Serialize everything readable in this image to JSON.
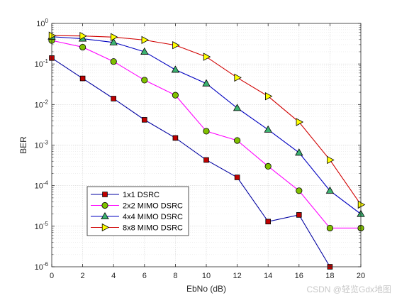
{
  "chart_data": {
    "type": "line",
    "title": "",
    "xlabel": "EbNo (dB)",
    "ylabel": "BER",
    "xlim": [
      0,
      20
    ],
    "ylim": [
      1e-06,
      1
    ],
    "yscale": "log",
    "grid": true,
    "minor_grid": true,
    "legend_placement": "lower-left",
    "x": [
      0,
      2,
      4,
      6,
      8,
      10,
      12,
      14,
      16,
      18,
      20
    ],
    "x_ticks": [
      "0",
      "2",
      "4",
      "6",
      "8",
      "10",
      "12",
      "14",
      "16",
      "18",
      "20"
    ],
    "y_ticks": [
      {
        "exp": -6,
        "base": "10",
        "power": "-6"
      },
      {
        "exp": -5,
        "base": "10",
        "power": "-5"
      },
      {
        "exp": -4,
        "base": "10",
        "power": "-4"
      },
      {
        "exp": -3,
        "base": "10",
        "power": "-3"
      },
      {
        "exp": -2,
        "base": "10",
        "power": "-2"
      },
      {
        "exp": -1,
        "base": "10",
        "power": "-1"
      },
      {
        "exp": 0,
        "base": "10",
        "power": "0"
      }
    ],
    "series": [
      {
        "name": "1x1 DSRC",
        "color": "#0000a0",
        "marker": "square",
        "marker_color": "#c00000",
        "values": [
          0.14,
          0.044,
          0.014,
          0.0042,
          0.0015,
          0.00043,
          0.00016,
          1.3e-05,
          1.9e-05,
          1e-06,
          null
        ]
      },
      {
        "name": "2x2 MIMO DSRC",
        "color": "#ff00ff",
        "marker": "circle",
        "marker_color": "#80c000",
        "values": [
          0.38,
          0.26,
          0.115,
          0.04,
          0.017,
          0.0022,
          0.0013,
          0.0003,
          7.5e-05,
          9e-06,
          9e-06
        ]
      },
      {
        "name": "4x4 MIMO DSRC",
        "color": "#0000c0",
        "marker": "triangle",
        "marker_color": "#3cb371",
        "values": [
          0.47,
          0.42,
          0.34,
          0.2,
          0.072,
          0.033,
          0.0082,
          0.0024,
          0.00065,
          7.5e-05,
          2e-05
        ]
      },
      {
        "name": "8x8 MIMO DSRC",
        "color": "#d00000",
        "marker": "triangle-right",
        "marker_color": "#ffff00",
        "values": [
          0.5,
          0.49,
          0.46,
          0.39,
          0.29,
          0.15,
          0.046,
          0.016,
          0.0037,
          0.00043,
          3.4e-05
        ]
      }
    ]
  },
  "watermark": "CSDN @轻览Gdx地图"
}
